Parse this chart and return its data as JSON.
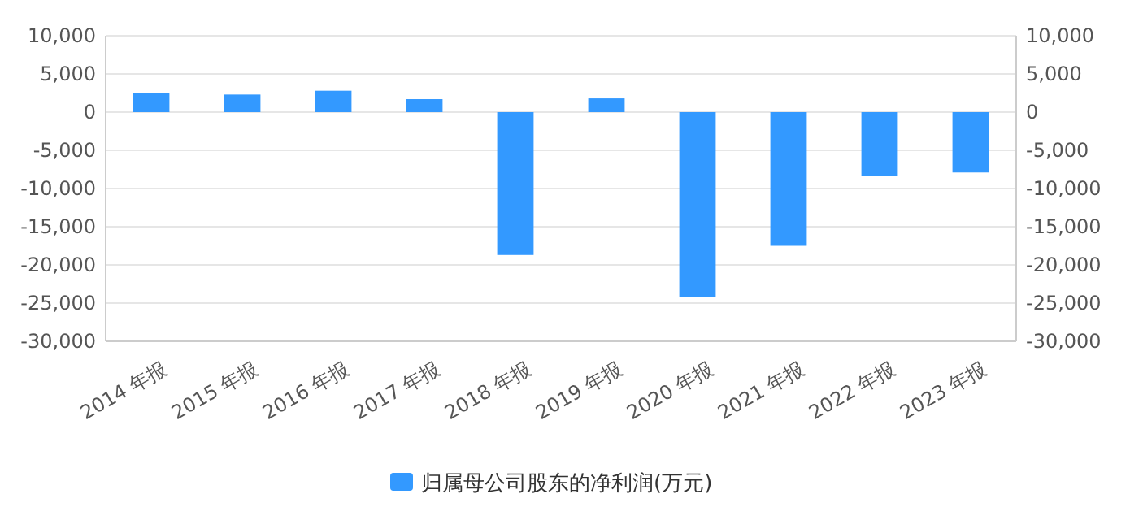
{
  "chart_data": {
    "type": "bar",
    "categories": [
      "2014 年报",
      "2015 年报",
      "2016 年报",
      "2017 年报",
      "2018 年报",
      "2019 年报",
      "2020 年报",
      "2021 年报",
      "2022 年报",
      "2023 年报"
    ],
    "series": [
      {
        "name": "归属母公司股东的净利润(万元)",
        "color": "#3399ff",
        "values": [
          2500,
          2300,
          2800,
          1700,
          -18700,
          1800,
          -24200,
          -17500,
          -8400,
          -7900
        ]
      }
    ],
    "ylim": [
      -30000,
      10000
    ],
    "yticks": [
      {
        "value": -30000,
        "label": "-30,000"
      },
      {
        "value": -25000,
        "label": "-25,000"
      },
      {
        "value": -20000,
        "label": "-20,000"
      },
      {
        "value": -15000,
        "label": "-15,000"
      },
      {
        "value": -10000,
        "label": "-10,000"
      },
      {
        "value": -5000,
        "label": "-5,000"
      },
      0,
      {
        "value": 5000,
        "label": "5,000"
      },
      {
        "value": 10000,
        "label": "10,000"
      }
    ],
    "y2lim": [
      -30000,
      10000
    ],
    "y2ticks": [
      {
        "value": -30000,
        "label": "-30,000"
      },
      {
        "value": -25000,
        "label": "-25,000"
      },
      {
        "value": -20000,
        "label": "-20,000"
      },
      {
        "value": -15000,
        "label": "-15,000"
      },
      {
        "value": -10000,
        "label": "-10,000"
      },
      {
        "value": -5000,
        "label": "-5,000"
      },
      0,
      {
        "value": 5000,
        "label": "5,000"
      },
      {
        "value": 10000,
        "label": "10,000"
      }
    ],
    "grid": "y",
    "legend": "bottom"
  }
}
